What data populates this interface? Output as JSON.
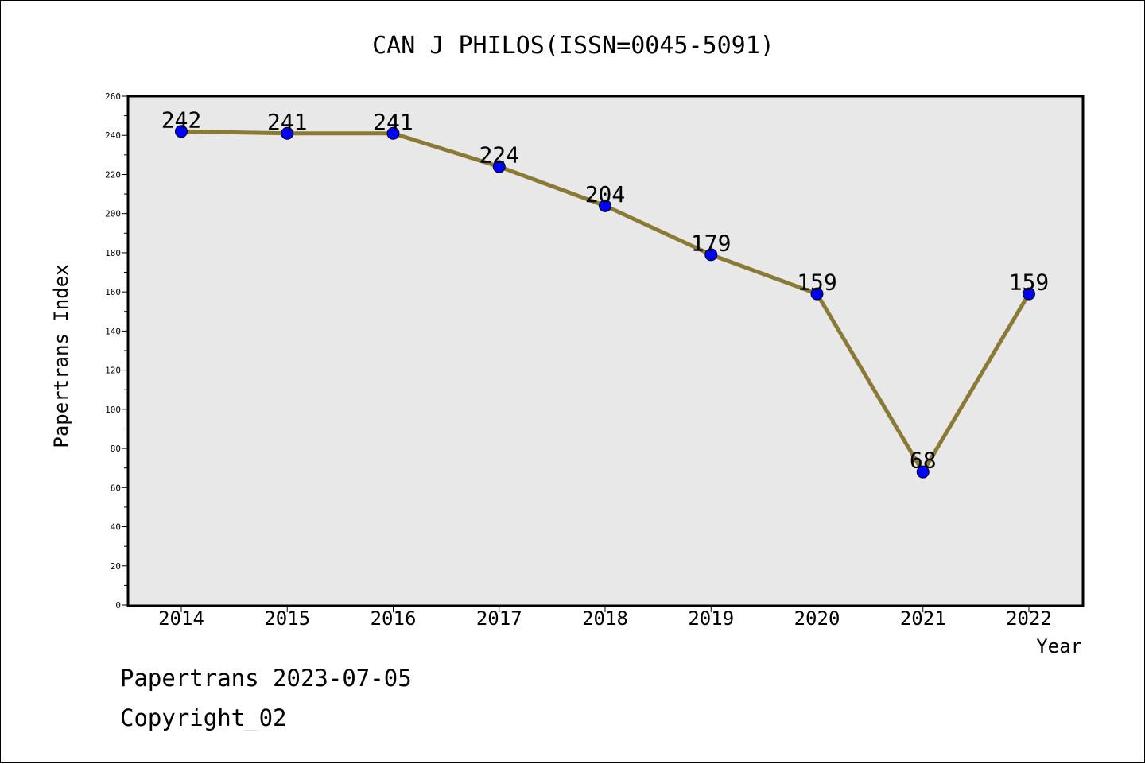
{
  "chart_data": {
    "type": "line",
    "title": "CAN J PHILOS(ISSN=0045-5091)",
    "xlabel": "Year",
    "ylabel": "Papertrans Index",
    "categories": [
      "2014",
      "2015",
      "2016",
      "2017",
      "2018",
      "2019",
      "2020",
      "2021",
      "2022"
    ],
    "series": [
      {
        "name": "Papertrans Index",
        "values": [
          242,
          241,
          241,
          224,
          204,
          179,
          159,
          68,
          159
        ],
        "data_labels": [
          "242",
          "241",
          "241",
          "224",
          "204",
          "179",
          "159",
          "68",
          "159"
        ],
        "line_color": "#8b7a35",
        "marker_color": "#0000ff"
      }
    ],
    "ylim": [
      0,
      260
    ],
    "yticks": [
      "0",
      "20",
      "40",
      "60",
      "80",
      "100",
      "120",
      "140",
      "160",
      "180",
      "200",
      "220",
      "240",
      "260"
    ],
    "grid": false,
    "plot_background": "#e8e8e8"
  },
  "footer": {
    "source_line": "Papertrans 2023-07-05",
    "copyright_line": "Copyright_02"
  }
}
